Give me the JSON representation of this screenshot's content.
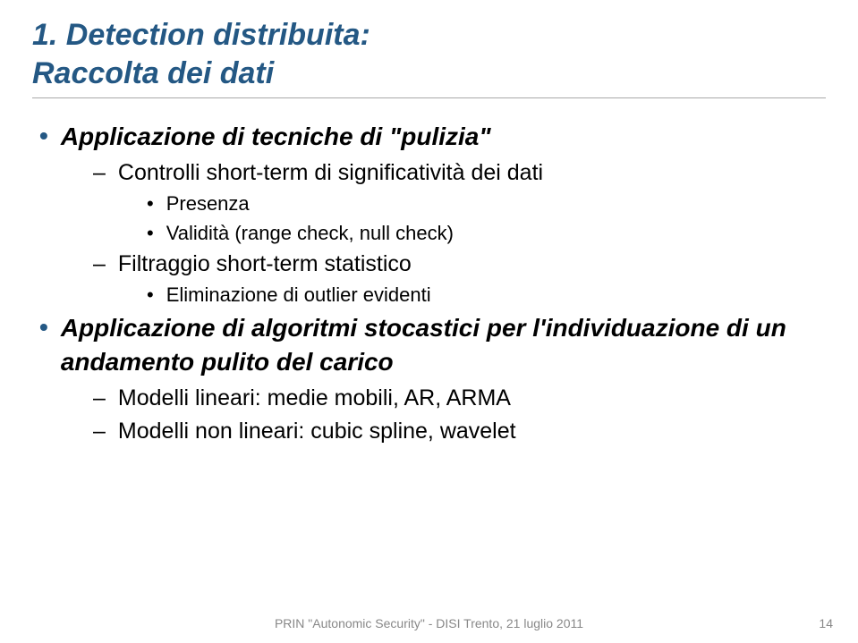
{
  "title": {
    "line1": "1. Detection distribuita:",
    "line2": "Raccolta dei dati"
  },
  "items": [
    {
      "level": 1,
      "text": "Applicazione di tecniche di \"pulizia\""
    },
    {
      "level": 2,
      "text": "Controlli short-term di significatività dei dati"
    },
    {
      "level": 3,
      "text": "Presenza"
    },
    {
      "level": 3,
      "text": "Validità (range check, null check)"
    },
    {
      "level": 2,
      "text": "Filtraggio short-term statistico"
    },
    {
      "level": 3,
      "text": "Eliminazione di outlier evidenti"
    },
    {
      "level": 1,
      "text": "Applicazione di algoritmi stocastici per l'individuazione di un andamento pulito del carico"
    },
    {
      "level": 2,
      "text": "Modelli lineari: medie mobili, AR, ARMA"
    },
    {
      "level": 2,
      "text": "Modelli non lineari: cubic spline, wavelet"
    }
  ],
  "footer": "PRIN \"Autonomic Security\" - DISI Trento, 21 luglio 2011",
  "pagenum": "14",
  "colors": {
    "title_color": "#245884",
    "bullet_marker_color": "#245884",
    "body_text": "#000000",
    "footer_text": "#888888",
    "underline": "#a9a9a9",
    "background": "#ffffff"
  },
  "markers": {
    "l1": "•",
    "l2": "–",
    "l3": "•",
    "l4": "–"
  }
}
